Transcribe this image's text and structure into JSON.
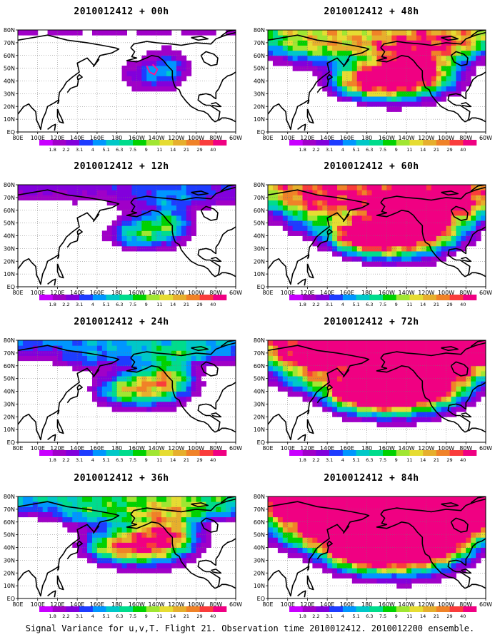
{
  "caption": "Signal Variance for u,v,T. Flight 21. Observation time 2010012412. 2010012200 ensemble.",
  "colorbar": {
    "labels": [
      "1.8",
      "2.2",
      "3.1",
      "4",
      "5.1",
      "6.3",
      "7.5",
      "9",
      "11",
      "14",
      "21",
      "29",
      "40"
    ],
    "colors": [
      "#a000c8",
      "#8200dc",
      "#1e3cff",
      "#0096ff",
      "#00c8c8",
      "#00dc8c",
      "#00d200",
      "#a0e632",
      "#e6dc32",
      "#e6af2d",
      "#f08228",
      "#fa3c3c",
      "#f00082"
    ]
  },
  "axes": {
    "lon_ticks": [
      "80E",
      "100E",
      "120E",
      "140E",
      "160E",
      "180",
      "160W",
      "140W",
      "120W",
      "100W",
      "80W",
      "60W"
    ],
    "lat_ticks": [
      "EQ",
      "10N",
      "20N",
      "30N",
      "40N",
      "50N",
      "60N",
      "70N",
      "80N"
    ]
  },
  "chart_data": [
    {
      "type": "heatmap",
      "title": "2010012412 + 00h",
      "lead_hours": 0,
      "level": 1
    },
    {
      "type": "heatmap",
      "title": "2010012412 + 12h",
      "lead_hours": 12,
      "level": 2
    },
    {
      "type": "heatmap",
      "title": "2010012412 + 24h",
      "lead_hours": 24,
      "level": 3
    },
    {
      "type": "heatmap",
      "title": "2010012412 + 36h",
      "lead_hours": 36,
      "level": 4
    },
    {
      "type": "heatmap",
      "title": "2010012412 + 48h",
      "lead_hours": 48,
      "level": 5
    },
    {
      "type": "heatmap",
      "title": "2010012412 + 60h",
      "lead_hours": 60,
      "level": 6
    },
    {
      "type": "heatmap",
      "title": "2010012412 + 72h",
      "lead_hours": 72,
      "level": 7
    },
    {
      "type": "heatmap",
      "title": "2010012412 + 84h",
      "lead_hours": 84,
      "level": 8
    }
  ]
}
